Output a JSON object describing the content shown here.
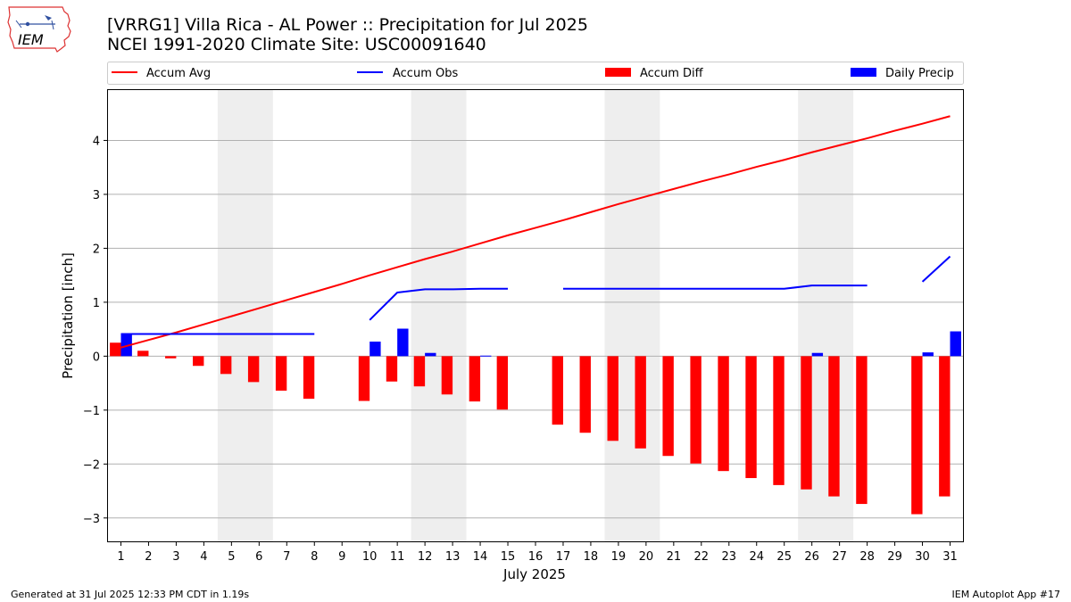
{
  "header": {
    "title_line1": "[VRRG1] Villa Rica - AL Power :: Precipitation for Jul 2025",
    "title_line2": "NCEI 1991-2020 Climate Site: USC00091640",
    "logo_text": "IEM"
  },
  "footer": {
    "generated": "Generated at 31 Jul 2025 12:33 PM CDT in 1.19s",
    "app": "IEM Autoplot App #17"
  },
  "colors": {
    "accum_avg": "#ff0000",
    "accum_obs": "#0000ff",
    "accum_diff": "#ff0000",
    "daily_precip": "#0000ff",
    "weekend_shade": "#eeeeee",
    "grid": "#b0b0b0"
  },
  "chart_data": {
    "type": "bar",
    "xlabel": "July 2025",
    "ylabel": "Precipitation [inch]",
    "xlim": [
      0.5,
      31.5
    ],
    "ylim": [
      -3.45,
      4.95
    ],
    "yticks": [
      -3,
      -2,
      -1,
      0,
      1,
      2,
      3,
      4
    ],
    "ytick_labels": [
      "−3",
      "−2",
      "−1",
      "0",
      "1",
      "2",
      "3",
      "4"
    ],
    "grid": "horizontal",
    "legend_position": "top",
    "days": [
      1,
      2,
      3,
      4,
      5,
      6,
      7,
      8,
      9,
      10,
      11,
      12,
      13,
      14,
      15,
      16,
      17,
      18,
      19,
      20,
      21,
      22,
      23,
      24,
      25,
      26,
      27,
      28,
      29,
      30,
      31
    ],
    "shaded_day_ranges": [
      [
        5,
        6
      ],
      [
        12,
        13
      ],
      [
        19,
        20
      ],
      [
        26,
        27
      ]
    ],
    "series": [
      {
        "name": "Accum Avg",
        "kind": "line",
        "values": [
          0.16,
          0.3,
          0.44,
          0.59,
          0.74,
          0.89,
          1.04,
          1.19,
          1.34,
          1.5,
          1.65,
          1.8,
          1.94,
          2.09,
          2.24,
          2.38,
          2.52,
          2.67,
          2.82,
          2.96,
          3.1,
          3.24,
          3.37,
          3.51,
          3.64,
          3.78,
          3.91,
          4.04,
          4.18,
          4.31,
          4.45
        ]
      },
      {
        "name": "Accum Obs",
        "kind": "line",
        "values": [
          0.41,
          0.41,
          0.41,
          0.41,
          0.41,
          0.41,
          0.41,
          0.41,
          null,
          0.67,
          1.18,
          1.24,
          1.24,
          1.25,
          1.25,
          null,
          1.25,
          1.25,
          1.25,
          1.25,
          1.25,
          1.25,
          1.25,
          1.25,
          1.25,
          1.31,
          1.31,
          1.31,
          null,
          1.38,
          1.85
        ]
      },
      {
        "name": "Accum Diff",
        "kind": "bar",
        "values": [
          0.25,
          0.1,
          -0.04,
          -0.18,
          -0.33,
          -0.48,
          -0.64,
          -0.79,
          null,
          -0.83,
          -0.47,
          -0.56,
          -0.71,
          -0.84,
          -0.99,
          null,
          -1.27,
          -1.42,
          -1.57,
          -1.71,
          -1.85,
          -1.99,
          -2.13,
          -2.26,
          -2.39,
          -2.47,
          -2.6,
          -2.74,
          null,
          -2.93,
          -2.6
        ]
      },
      {
        "name": "Daily Precip",
        "kind": "bar",
        "values": [
          0.41,
          0,
          0,
          0,
          0,
          0,
          0,
          0,
          0,
          0.27,
          0.51,
          0.06,
          0,
          0.01,
          0,
          0,
          0,
          0,
          0,
          0,
          0,
          0,
          0,
          0,
          0,
          0.06,
          0,
          0,
          0,
          0.07,
          0.46
        ]
      }
    ]
  }
}
